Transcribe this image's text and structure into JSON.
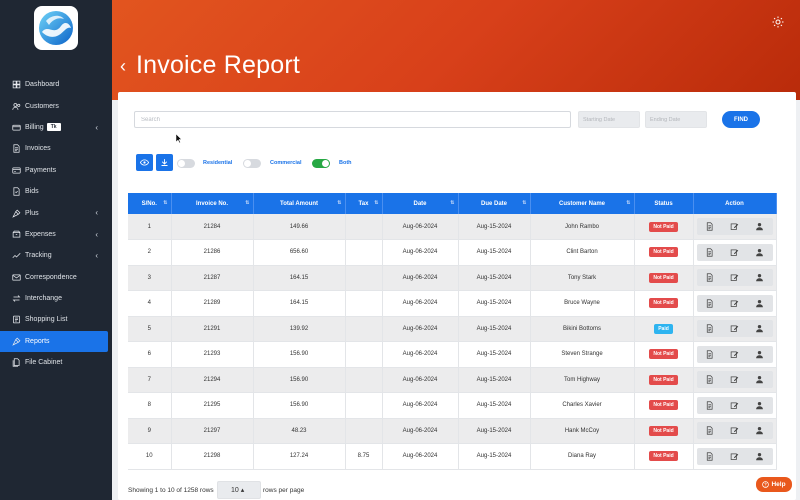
{
  "sidebar": {
    "items": [
      {
        "label": "Dashboard",
        "icon": "dashboard-icon"
      },
      {
        "label": "Customers",
        "icon": "customers-icon"
      },
      {
        "label": "Billing",
        "icon": "billing-icon",
        "badge": "Tk",
        "caret": "‹"
      },
      {
        "label": "Invoices",
        "icon": "invoices-icon"
      },
      {
        "label": "Payments",
        "icon": "payments-icon"
      },
      {
        "label": "Bids",
        "icon": "bids-icon"
      },
      {
        "label": "Plus",
        "icon": "plus-tools-icon",
        "caret": "‹"
      },
      {
        "label": "Expenses",
        "icon": "expenses-icon",
        "caret": "‹"
      },
      {
        "label": "Tracking",
        "icon": "tracking-icon",
        "caret": "‹"
      },
      {
        "label": "Correspondence",
        "icon": "mail-icon"
      },
      {
        "label": "Interchange",
        "icon": "interchange-icon"
      },
      {
        "label": "Shopping List",
        "icon": "shopping-list-icon"
      },
      {
        "label": "Reports",
        "icon": "reports-icon",
        "active": true
      },
      {
        "label": "File Cabinet",
        "icon": "file-cabinet-icon"
      }
    ]
  },
  "header": {
    "back_glyph": "‹",
    "title": "Invoice Report"
  },
  "filters": {
    "search_placeholder": "Search",
    "start_placeholder": "Starting Date",
    "end_placeholder": "Ending Date",
    "find_label": "FIND",
    "toggles": {
      "residential": {
        "label": "Residential",
        "on": false
      },
      "commercial": {
        "label": "Commercial",
        "on": false
      },
      "both": {
        "label": "Both",
        "on": true
      }
    }
  },
  "table": {
    "columns": [
      "S/No.",
      "Invoice No.",
      "Total Amount",
      "Tax",
      "Date",
      "Due Date",
      "Customer Name",
      "Status",
      "Action"
    ],
    "rows": [
      {
        "sno": "1",
        "invoice": "21284",
        "total": "149.66",
        "tax": "",
        "date": "Aug-06-2024",
        "due": "Aug-15-2024",
        "customer": "John Rambo",
        "status": "Not Paid"
      },
      {
        "sno": "2",
        "invoice": "21286",
        "total": "656.60",
        "tax": "",
        "date": "Aug-06-2024",
        "due": "Aug-15-2024",
        "customer": "Clint Barton",
        "status": "Not Paid"
      },
      {
        "sno": "3",
        "invoice": "21287",
        "total": "164.15",
        "tax": "",
        "date": "Aug-06-2024",
        "due": "Aug-15-2024",
        "customer": "Tony Stark",
        "status": "Not Paid"
      },
      {
        "sno": "4",
        "invoice": "21289",
        "total": "164.15",
        "tax": "",
        "date": "Aug-06-2024",
        "due": "Aug-15-2024",
        "customer": "Bruce Wayne",
        "status": "Not Paid"
      },
      {
        "sno": "5",
        "invoice": "21291",
        "total": "139.92",
        "tax": "",
        "date": "Aug-06-2024",
        "due": "Aug-15-2024",
        "customer": "Bikini Bottoms",
        "status": "Paid"
      },
      {
        "sno": "6",
        "invoice": "21293",
        "total": "156.90",
        "tax": "",
        "date": "Aug-06-2024",
        "due": "Aug-15-2024",
        "customer": "Steven Strange",
        "status": "Not Paid"
      },
      {
        "sno": "7",
        "invoice": "21294",
        "total": "156.90",
        "tax": "",
        "date": "Aug-06-2024",
        "due": "Aug-15-2024",
        "customer": "Tom Highway",
        "status": "Not Paid"
      },
      {
        "sno": "8",
        "invoice": "21295",
        "total": "156.90",
        "tax": "",
        "date": "Aug-06-2024",
        "due": "Aug-15-2024",
        "customer": "Charles Xavier",
        "status": "Not Paid"
      },
      {
        "sno": "9",
        "invoice": "21297",
        "total": "48.23",
        "tax": "",
        "date": "Aug-06-2024",
        "due": "Aug-15-2024",
        "customer": "Hank McCoy",
        "status": "Not Paid"
      },
      {
        "sno": "10",
        "invoice": "21298",
        "total": "127.24",
        "tax": "8.75",
        "date": "Aug-06-2024",
        "due": "Aug-15-2024",
        "customer": "Diana Ray",
        "status": "Not Paid"
      }
    ]
  },
  "footer": {
    "showing_text": "Showing 1 to 10 of 1258 rows",
    "rows_per_page_value": "10 ▴",
    "rows_per_page_label": "rows per page"
  },
  "help": {
    "label": "Help"
  },
  "colors": {
    "accent": "#1a73e8",
    "header_orange": "#d8401a",
    "sidebar_bg": "#1f2733",
    "not_paid": "#e34b4b",
    "paid": "#2eb4f0",
    "toggle_on": "#27a844"
  }
}
